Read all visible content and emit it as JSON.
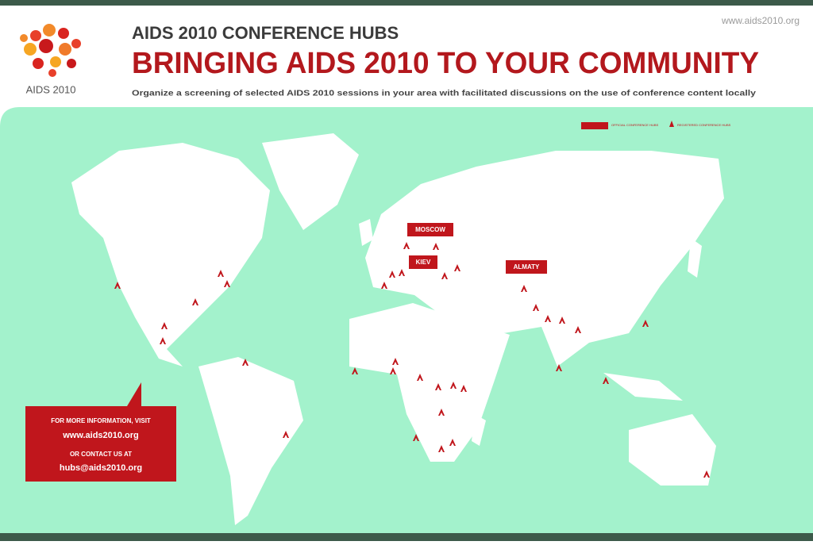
{
  "header": {
    "url": "www.aids2010.org",
    "logo_text": "AIDS 2010",
    "kicker": "AIDS 2010 CONFERENCE HUBS",
    "title": "BRINGING AIDS 2010 TO YOUR COMMUNITY",
    "subtitle": "Organize a screening of selected AIDS 2010 sessions in your area with facilitated discussions on the use of conference content locally"
  },
  "legend": {
    "items": [
      "OFFICIAL CONFERENCE HUBS",
      "REGISTERED CONFERENCE HUBS"
    ]
  },
  "hubs": [
    "MOSCOW",
    "KIEV",
    "ALMATY"
  ],
  "info_box": {
    "line1": "FOR MORE INFORMATION, VISIT",
    "url": "www.aids2010.org",
    "line2": "OR CONTACT US AT",
    "email": "hubs@aids2010.org"
  }
}
